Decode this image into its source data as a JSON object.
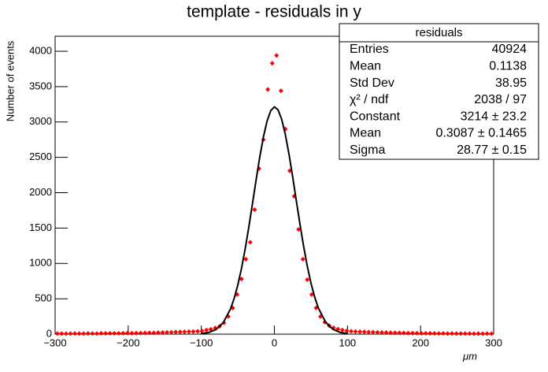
{
  "chart_data": {
    "type": "scatter",
    "title": "template - residuals in y",
    "x_label": "μm",
    "y_label": "Number of events",
    "xlim": [
      -300,
      300
    ],
    "ylim": [
      0,
      4212
    ],
    "xticks": [
      {
        "value": -300,
        "label": "−300"
      },
      {
        "value": -200,
        "label": "−200"
      },
      {
        "value": -100,
        "label": "−100"
      },
      0,
      100,
      200,
      300
    ],
    "yticks": [
      0,
      500,
      1000,
      1500,
      2000,
      2500,
      3000,
      3500,
      4000
    ],
    "points": {
      "color": "#ff0000",
      "x": [
        -297,
        -291,
        -285,
        -279,
        -273,
        -267,
        -261,
        -255,
        -249,
        -243,
        -237,
        -231,
        -225,
        -219,
        -213,
        -207,
        -201,
        -195,
        -189,
        -183,
        -177,
        -171,
        -165,
        -159,
        -153,
        -147,
        -141,
        -135,
        -129,
        -123,
        -117,
        -111,
        -105,
        -99,
        -93,
        -87,
        -81,
        -75,
        -69,
        -63,
        -57,
        -51,
        -45,
        -39,
        -33,
        -27,
        -21,
        -15,
        -9,
        -3,
        3,
        9,
        15,
        21,
        27,
        33,
        39,
        45,
        51,
        57,
        63,
        69,
        75,
        81,
        87,
        93,
        99,
        105,
        111,
        117,
        123,
        129,
        135,
        141,
        147,
        153,
        159,
        165,
        171,
        177,
        183,
        189,
        195,
        201,
        207,
        213,
        219,
        225,
        231,
        237,
        243,
        249,
        255,
        261,
        267,
        273,
        279,
        285,
        291,
        297
      ],
      "values": [
        8,
        9,
        7,
        9,
        10,
        8,
        9,
        11,
        10,
        9,
        12,
        11,
        12,
        13,
        12,
        14,
        15,
        14,
        16,
        17,
        18,
        19,
        20,
        22,
        24,
        26,
        28,
        30,
        32,
        34,
        36,
        38,
        40,
        45,
        58,
        70,
        88,
        110,
        160,
        250,
        370,
        560,
        780,
        1060,
        1300,
        1760,
        2340,
        2750,
        3460,
        3830,
        3940,
        3440,
        2900,
        2310,
        1950,
        1480,
        1060,
        770,
        560,
        370,
        250,
        170,
        120,
        90,
        72,
        58,
        46,
        40,
        38,
        35,
        33,
        31,
        29,
        27,
        25,
        23,
        21,
        20,
        19,
        18,
        16,
        15,
        14,
        13,
        12,
        12,
        11,
        10,
        11,
        9,
        10,
        9,
        8,
        9,
        8,
        7,
        8,
        7,
        8,
        7
      ]
    },
    "fit": {
      "color": "#000000",
      "x": [
        -100,
        -90,
        -80,
        -70,
        -60,
        -55,
        -50,
        -45,
        -40,
        -35,
        -30,
        -25,
        -20,
        -15,
        -10,
        -5,
        0,
        5,
        10,
        15,
        20,
        25,
        30,
        35,
        40,
        45,
        50,
        55,
        60,
        70,
        80,
        90,
        100
      ],
      "values": [
        7.4,
        23.3,
        65.3,
        162.3,
        357,
        506.5,
        697,
        930,
        1204,
        1513,
        1845,
        2183,
        2505,
        2790,
        3014,
        3160,
        3214,
        3172,
        3037,
        2821,
        2543,
        2224,
        1887,
        1554,
        1241,
        962,
        723,
        528,
        373,
        171,
        69.3,
        24.9,
        7.9
      ]
    },
    "stats_box": {
      "title": "residuals",
      "rows": [
        [
          "Entries",
          "40924"
        ],
        [
          "Mean",
          "0.1138"
        ],
        [
          "Std Dev",
          "38.95"
        ],
        [
          "χ² / ndf",
          "2038 / 97"
        ],
        [
          "Constant",
          "3214 ± 23.2"
        ],
        [
          "Mean",
          "0.3087 ± 0.1465"
        ],
        [
          "Sigma",
          "28.77 ± 0.15"
        ]
      ]
    }
  }
}
